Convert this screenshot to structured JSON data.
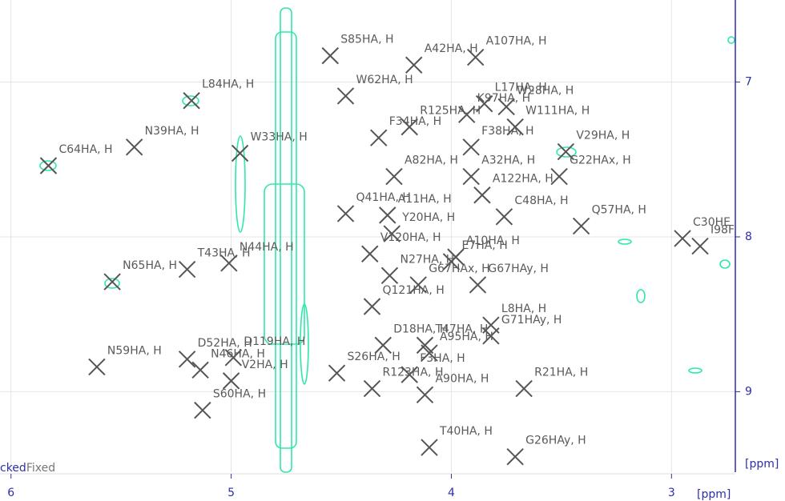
{
  "chart_data": {
    "type": "scatter",
    "xlabel": "[ppm]",
    "ylabel": "[ppm]",
    "annotations": [
      "cked",
      "Fixed"
    ],
    "xlim": [
      6.05,
      2.71
    ],
    "ylim": [
      6.47,
      9.52
    ],
    "xticks": [
      6,
      5,
      4,
      3
    ],
    "yticks": [
      7,
      8,
      9
    ],
    "grid": true,
    "marker_color": "#555555",
    "labels": [
      "S85HA, H",
      "A42HA, H",
      "A107HA, H",
      "W62HA, H",
      "L84HA, H",
      "W28HA, H",
      "L17HA, H",
      "K97HA, H",
      "R125HA, H",
      "W111HA, H",
      "F34HA, H",
      "F38HA, H",
      "V29HA, H",
      "C64HA, H",
      "N39HA, H",
      "W33HA, H",
      "G22HAx, H",
      "A122HA, H",
      "A32HA, H",
      "A82HA, H",
      "Q41HA, H",
      "A11HA, H",
      "C48HA, H",
      "Q57HA, H",
      "Y20HA, H",
      "C30HE",
      "I98F",
      "V120HA, H",
      "A10HA, H",
      "E7HA, H",
      "T43HA, H",
      "N44HA, H",
      "N65HA, H",
      "N27HA, H",
      "G67HAx, H",
      "G67HAy, H",
      "Q121HA, H",
      "L8HA, H",
      "G71HAy, H",
      "D18HA, H",
      "T47HA, H",
      "A95HA, H",
      "D52HA, H",
      "D119HA, H",
      "N46HA, H",
      "N59HA, H",
      "V2HA, H",
      "S26HA, H",
      "F3HA, H",
      "R123HA, H",
      "A90HA, H",
      "R21HA, H",
      "S60HA, H",
      "T40HA, H",
      "G26HAy, H"
    ],
    "x": [
      4.55,
      4.17,
      3.89,
      4.48,
      5.18,
      3.75,
      3.85,
      3.93,
      4.19,
      3.71,
      4.33,
      3.91,
      3.48,
      5.83,
      5.44,
      4.96,
      3.51,
      3.86,
      3.91,
      4.26,
      4.48,
      4.29,
      3.76,
      3.41,
      4.27,
      2.95,
      2.87,
      4.37,
      3.98,
      4.0,
      5.2,
      5.01,
      5.54,
      4.28,
      4.15,
      3.88,
      4.36,
      3.82,
      3.82,
      4.31,
      4.12,
      4.1,
      5.2,
      4.99,
      5.14,
      5.61,
      5.0,
      4.52,
      4.19,
      4.36,
      4.12,
      3.67,
      5.13,
      4.1,
      3.71
    ],
    "values": [
      6.83,
      6.89,
      6.84,
      7.09,
      7.12,
      7.16,
      7.14,
      7.21,
      7.29,
      7.29,
      7.36,
      7.42,
      7.45,
      7.54,
      7.42,
      7.46,
      7.61,
      7.73,
      7.61,
      7.61,
      7.85,
      7.86,
      7.87,
      7.93,
      7.98,
      8.01,
      8.06,
      8.11,
      8.13,
      8.16,
      8.21,
      8.17,
      8.29,
      8.25,
      8.31,
      8.31,
      8.45,
      8.57,
      8.64,
      8.7,
      8.7,
      8.75,
      8.79,
      8.78,
      8.86,
      8.84,
      8.93,
      8.88,
      8.89,
      8.98,
      9.02,
      8.98,
      9.12,
      9.36,
      9.42
    ]
  }
}
